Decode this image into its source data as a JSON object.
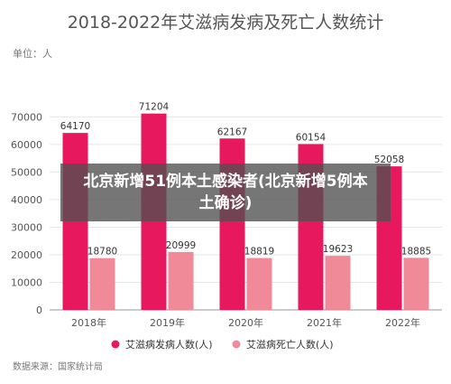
{
  "chart_data": {
    "type": "bar",
    "title": "2018-2022年艾滋病发病及死亡人数统计",
    "unit_label": "单位：人",
    "categories": [
      "2018年",
      "2019年",
      "2020年",
      "2021年",
      "2022年"
    ],
    "series": [
      {
        "name": "艾滋病发病人数(人)",
        "values": [
          64170,
          71204,
          62167,
          60154,
          52058
        ],
        "color": "#e8185f"
      },
      {
        "name": "艾滋病死亡人数(人)",
        "values": [
          18780,
          20999,
          18819,
          19623,
          18885
        ],
        "color": "#f08a99"
      }
    ],
    "yticks": [
      0,
      10000,
      20000,
      30000,
      40000,
      50000,
      60000,
      70000
    ],
    "ylim": [
      0,
      77000
    ],
    "grid": true,
    "legend_position": "bottom",
    "source": "数据来源：国家统计局"
  },
  "overlay": {
    "text": "北京新增51例本土感染者(北京新增5例本土确诊)"
  },
  "colors": {
    "title": "#555555",
    "axis_text": "#555555",
    "grid": "#e6e6e6",
    "source": "#777777"
  }
}
